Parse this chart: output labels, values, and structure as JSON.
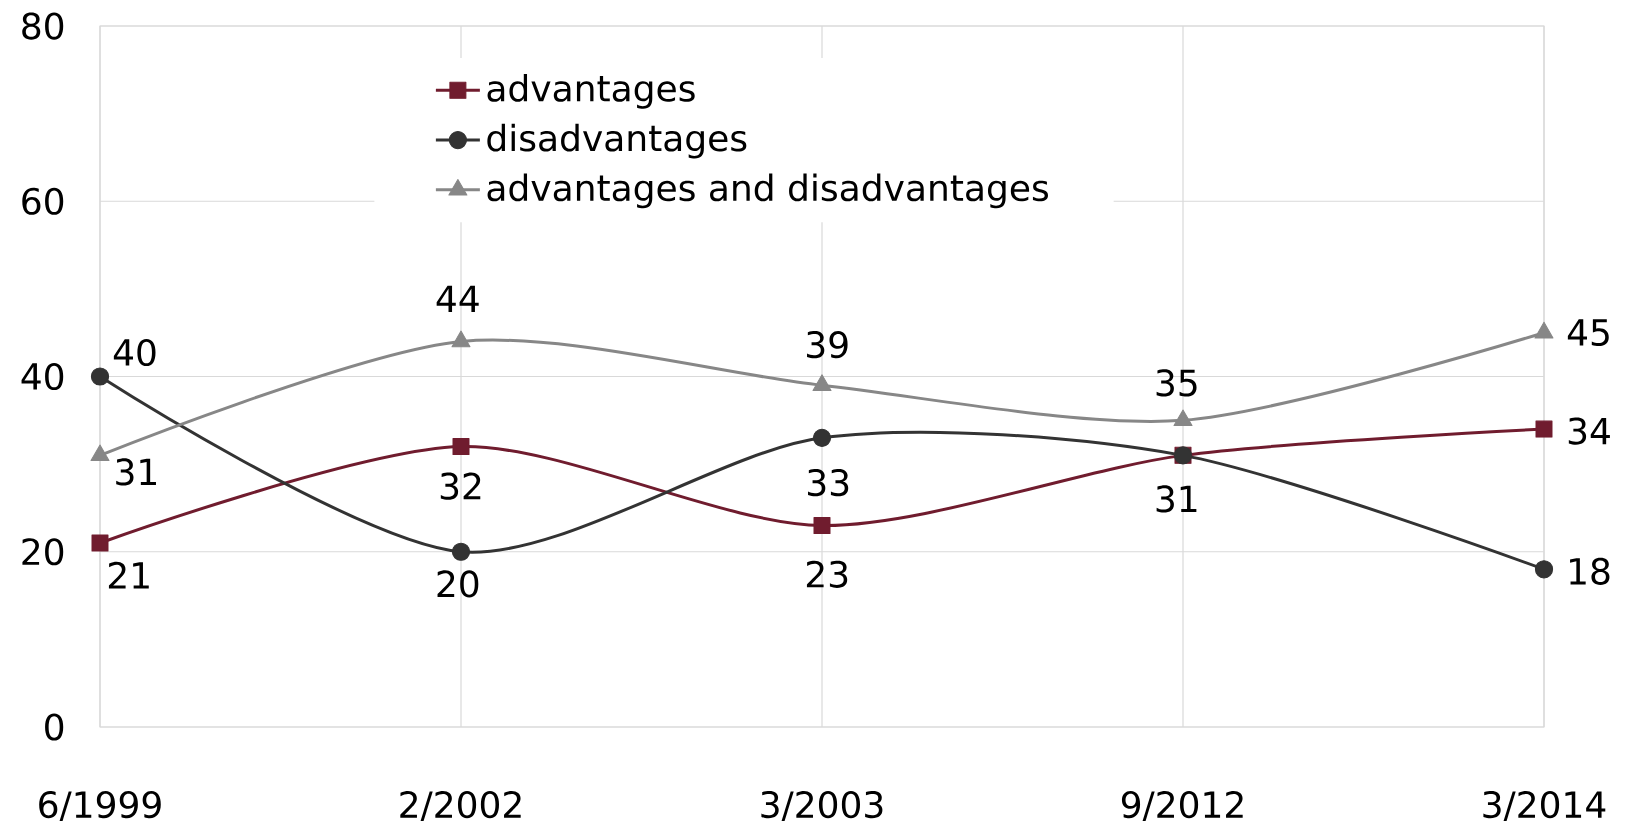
{
  "chart_data": {
    "type": "line",
    "categories": [
      "6/1999",
      "2/2002",
      "3/2003",
      "9/2012",
      "3/2014"
    ],
    "series": [
      {
        "name": "advantages",
        "color": "#701c2e",
        "marker": "square",
        "values": [
          21,
          32,
          23,
          31,
          34
        ],
        "value_labels": [
          "21",
          "32",
          "23",
          "31",
          "34"
        ]
      },
      {
        "name": "disadvantages",
        "color": "#333333",
        "marker": "circle",
        "values": [
          40,
          20,
          33,
          31,
          18
        ],
        "value_labels": [
          "40",
          "20",
          "33",
          null,
          "18"
        ]
      },
      {
        "name": "advantages and disadvantages",
        "color": "#878787",
        "marker": "triangle",
        "values": [
          31,
          44,
          39,
          35,
          45
        ],
        "value_labels": [
          "31",
          "44",
          "39",
          "35",
          "45"
        ]
      }
    ],
    "ylim": [
      0,
      80
    ],
    "yticks": [
      0,
      20,
      40,
      60,
      80
    ],
    "grid": true,
    "legend": "top",
    "line_style": "solid"
  }
}
